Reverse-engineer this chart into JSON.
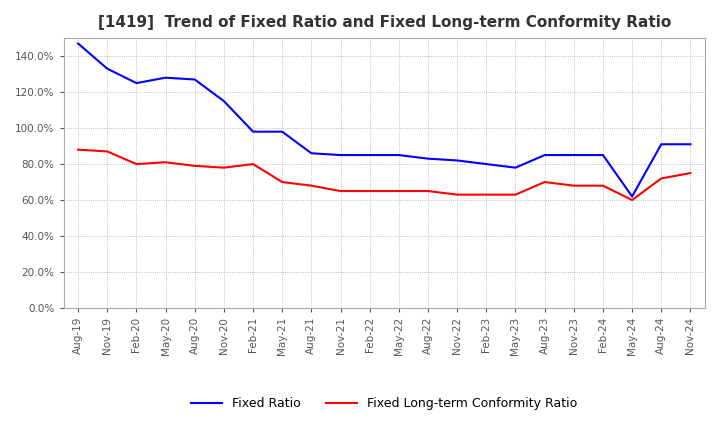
{
  "title": "[1419]  Trend of Fixed Ratio and Fixed Long-term Conformity Ratio",
  "x_labels": [
    "Aug-19",
    "Nov-19",
    "Feb-20",
    "May-20",
    "Aug-20",
    "Nov-20",
    "Feb-21",
    "May-21",
    "Aug-21",
    "Nov-21",
    "Feb-22",
    "May-22",
    "Aug-22",
    "Nov-22",
    "Feb-23",
    "May-23",
    "Aug-23",
    "Nov-23",
    "Feb-24",
    "May-24",
    "Aug-24",
    "Nov-24"
  ],
  "fixed_ratio": [
    1.47,
    1.33,
    1.25,
    1.28,
    1.27,
    1.15,
    0.98,
    0.98,
    0.86,
    0.85,
    0.85,
    0.85,
    0.83,
    0.82,
    0.8,
    0.78,
    0.85,
    0.85,
    0.85,
    0.62,
    0.91,
    0.91
  ],
  "fixed_lt_ratio": [
    0.88,
    0.87,
    0.8,
    0.81,
    0.79,
    0.78,
    0.8,
    0.7,
    0.68,
    0.65,
    0.65,
    0.65,
    0.65,
    0.63,
    0.63,
    0.63,
    0.7,
    0.68,
    0.68,
    0.6,
    0.72,
    0.75
  ],
  "fixed_ratio_color": "#0000ff",
  "fixed_lt_ratio_color": "#ff0000",
  "ylim": [
    0.0,
    1.5
  ],
  "yticks": [
    0.0,
    0.2,
    0.4,
    0.6,
    0.8,
    1.0,
    1.2,
    1.4
  ],
  "background_color": "#ffffff",
  "grid_color": "#aaaaaa",
  "title_fontsize": 11,
  "legend_labels": [
    "Fixed Ratio",
    "Fixed Long-term Conformity Ratio"
  ]
}
